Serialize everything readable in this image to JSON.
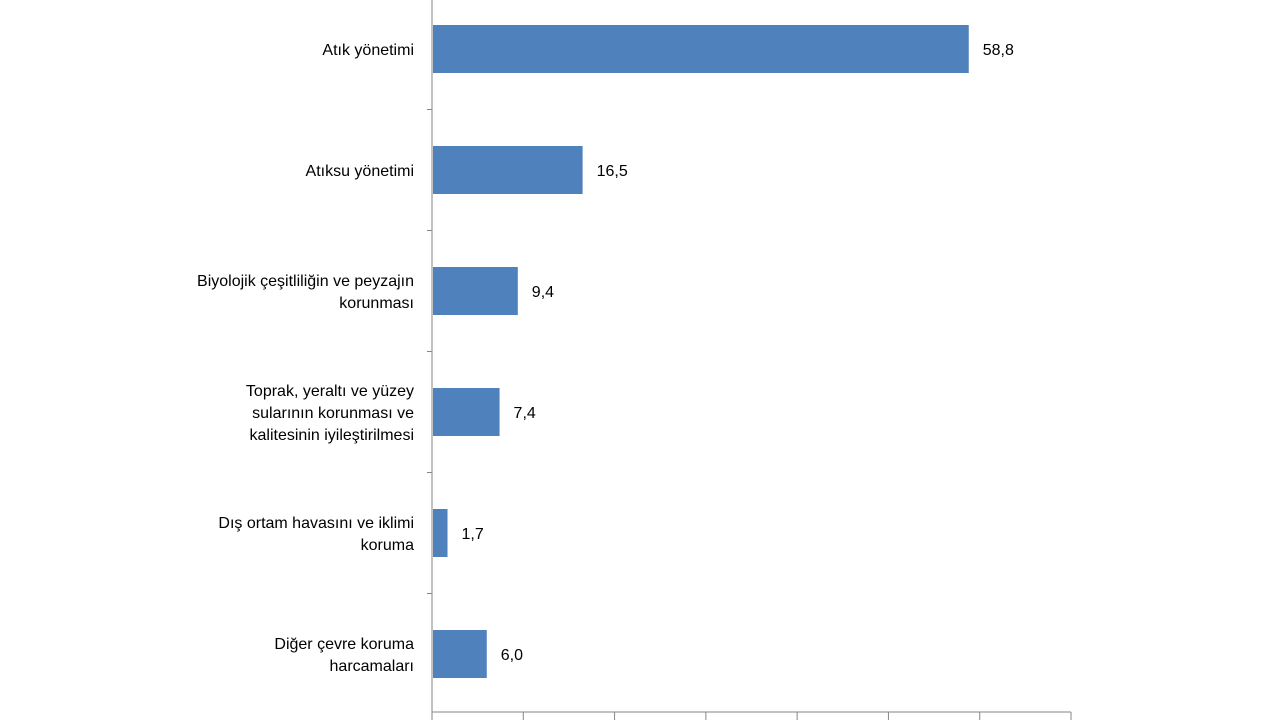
{
  "chart_data": {
    "type": "bar",
    "orientation": "horizontal",
    "categories": [
      [
        "Atık yönetimi"
      ],
      [
        "Atıksu yönetimi"
      ],
      [
        "Biyolojik çeşitliliğin ve peyzajın",
        "korunması"
      ],
      [
        "Toprak, yeraltı ve yüzey",
        "sularının korunması ve",
        "kalitesinin iyileştirilmesi"
      ],
      [
        "Dış ortam havasını ve iklimi",
        "koruma"
      ],
      [
        "Diğer çevre koruma",
        "harcamaları"
      ]
    ],
    "values": [
      58.8,
      16.5,
      9.4,
      7.4,
      1.7,
      6.0
    ],
    "value_labels": [
      "58,8",
      "16,5",
      "9,4",
      "7,4",
      "1,7",
      "6,0"
    ],
    "xlim": [
      0,
      70
    ],
    "x_ticks": [
      0,
      10,
      20,
      30,
      40,
      50,
      60,
      70
    ],
    "grid": false,
    "bar_color": "#4F81BD",
    "axis_color": "#868686",
    "title": "",
    "xlabel": "",
    "ylabel": ""
  }
}
